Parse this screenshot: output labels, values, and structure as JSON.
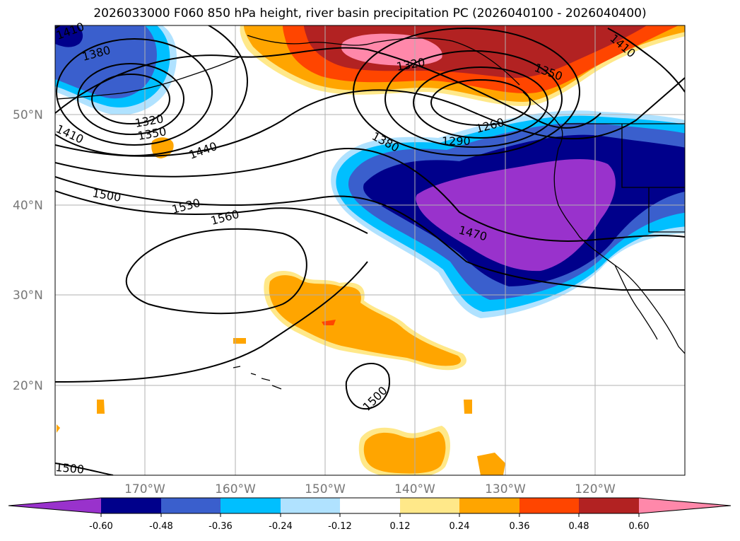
{
  "title": "2026033000 F060 850 hPa height, river basin precipitation PC (2026040100 - 2026040400)",
  "lat_labels": [
    "50°N",
    "40°N",
    "30°N",
    "20°N"
  ],
  "lon_labels": [
    "170°W",
    "160°W",
    "150°W",
    "140°W",
    "130°W",
    "120°W"
  ],
  "contour_labels": [
    "1410",
    "1380",
    "1320",
    "1350",
    "1410",
    "1440",
    "1500",
    "1530",
    "1560",
    "1320",
    "1350",
    "1410",
    "1260",
    "1290",
    "1380",
    "1470",
    "1500",
    "1500"
  ],
  "colorbar": {
    "ticks": [
      "-0.60",
      "-0.48",
      "-0.36",
      "-0.24",
      "-0.12",
      "0.12",
      "0.24",
      "0.36",
      "0.48",
      "0.60"
    ],
    "colors": [
      "#9932cc",
      "#00008b",
      "#3a5fcd",
      "#00bfff",
      "#b0e2ff",
      "#ffffff",
      "#ffe889",
      "#ffa500",
      "#ff4500",
      "#b22222",
      "#ff88aa"
    ]
  },
  "colors": {
    "c_neg_060": "#9932cc",
    "c_neg_048": "#00008b",
    "c_neg_036": "#3a5fcd",
    "c_neg_024": "#00bfff",
    "c_neg_012": "#b0e2ff",
    "c_pos_012": "#ffe889",
    "c_pos_024": "#ffa500",
    "c_pos_036": "#ff4500",
    "c_pos_048": "#b22222",
    "c_pos_060": "#ff88aa",
    "grid": "#b0b0b0",
    "coast": "#000000"
  }
}
